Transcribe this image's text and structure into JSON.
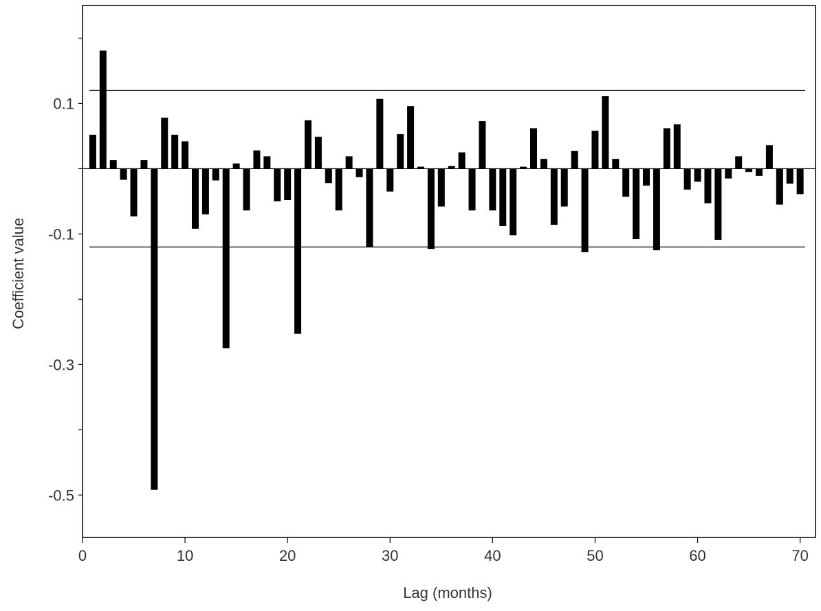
{
  "chart_data": {
    "type": "bar",
    "title": "",
    "xlabel": "Lag (months)",
    "ylabel": "Coefficient value",
    "xlim": [
      0,
      71.5
    ],
    "ylim": [
      -0.565,
      0.25
    ],
    "xticks": [
      0,
      10,
      20,
      30,
      40,
      50,
      60,
      70
    ],
    "yticks_labeled": [
      0.1,
      -0.1,
      -0.3,
      -0.5
    ],
    "yticks_minor": [
      0.2,
      0.0,
      -0.2,
      -0.4
    ],
    "grid": false,
    "confidence_bounds": [
      0.12,
      -0.12
    ],
    "x": [
      1,
      2,
      3,
      4,
      5,
      6,
      7,
      8,
      9,
      10,
      11,
      12,
      13,
      14,
      15,
      16,
      17,
      18,
      19,
      20,
      21,
      22,
      23,
      24,
      25,
      26,
      27,
      28,
      29,
      30,
      31,
      32,
      33,
      34,
      35,
      36,
      37,
      38,
      39,
      40,
      41,
      42,
      43,
      44,
      45,
      46,
      47,
      48,
      49,
      50,
      51,
      52,
      53,
      54,
      55,
      56,
      57,
      58,
      59,
      60,
      61,
      62,
      63,
      64,
      65,
      66,
      67,
      68,
      69,
      70
    ],
    "values": [
      0.052,
      0.181,
      0.013,
      -0.017,
      -0.073,
      0.013,
      -0.492,
      0.078,
      0.052,
      0.042,
      -0.092,
      -0.07,
      -0.018,
      -0.275,
      0.008,
      -0.064,
      0.028,
      0.019,
      -0.05,
      -0.048,
      -0.253,
      0.074,
      0.049,
      -0.022,
      -0.064,
      0.019,
      -0.013,
      -0.12,
      0.107,
      -0.035,
      0.053,
      0.096,
      0.003,
      -0.123,
      -0.058,
      0.004,
      0.025,
      -0.064,
      0.073,
      -0.064,
      -0.088,
      -0.102,
      0.003,
      0.062,
      0.015,
      -0.086,
      -0.058,
      0.027,
      -0.128,
      0.058,
      0.111,
      0.015,
      -0.043,
      -0.108,
      -0.026,
      -0.125,
      0.062,
      0.068,
      -0.032,
      -0.02,
      -0.053,
      -0.109,
      -0.015,
      0.019,
      -0.005,
      -0.011,
      0.036,
      -0.055,
      -0.023,
      -0.039
    ]
  }
}
